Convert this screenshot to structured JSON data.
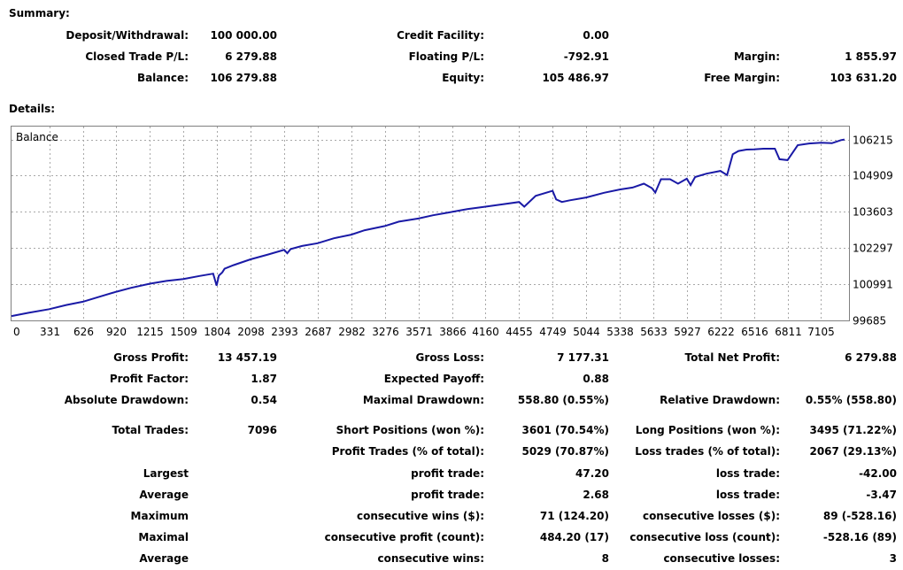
{
  "summary": {
    "title": "Summary:",
    "deposit_withdrawal": {
      "label": "Deposit/Withdrawal:",
      "value": "100 000.00"
    },
    "credit_facility": {
      "label": "Credit Facility:",
      "value": "0.00"
    },
    "closed_trade_pl": {
      "label": "Closed Trade P/L:",
      "value": "6 279.88"
    },
    "floating_pl": {
      "label": "Floating P/L:",
      "value": "-792.91"
    },
    "margin": {
      "label": "Margin:",
      "value": "1 855.97"
    },
    "balance": {
      "label": "Balance:",
      "value": "106 279.88"
    },
    "equity": {
      "label": "Equity:",
      "value": "105 486.97"
    },
    "free_margin": {
      "label": "Free Margin:",
      "value": "103 631.20"
    }
  },
  "details": {
    "title": "Details:",
    "chart_label": "Balance"
  },
  "chart_data": {
    "type": "line",
    "title": "Balance",
    "x_ticks": [
      "0",
      "331",
      "626",
      "920",
      "1215",
      "1509",
      "1804",
      "2098",
      "2393",
      "2687",
      "2982",
      "3276",
      "3571",
      "3866",
      "4160",
      "4455",
      "4749",
      "5044",
      "5338",
      "5633",
      "5927",
      "6222",
      "6516",
      "6811",
      "7105"
    ],
    "y_ticks": [
      "106215",
      "104909",
      "103603",
      "102297",
      "100991",
      "99685"
    ],
    "ylim": [
      99685,
      106680
    ],
    "xlim": [
      0,
      7350
    ],
    "grid": true,
    "line_color": "#1a1aa6",
    "series": [
      {
        "x": [
          0,
          150,
          331,
          480,
          626,
          780,
          920,
          1050,
          1215,
          1360,
          1509,
          1650,
          1770,
          1800,
          1820,
          1850,
          1870,
          1950,
          2098,
          2250,
          2393,
          2420,
          2450,
          2550,
          2687,
          2830,
          2982,
          3100,
          3276,
          3400,
          3571,
          3700,
          3866,
          4000,
          4160,
          4300,
          4455,
          4500,
          4600,
          4749,
          4780,
          4830,
          4900,
          5044,
          5200,
          5338,
          5450,
          5550,
          5620,
          5650,
          5700,
          5780,
          5850,
          5927,
          5960,
          6000,
          6100,
          6222,
          6280,
          6330,
          6380,
          6450,
          6516,
          6600,
          6700,
          6740,
          6811,
          6900,
          7000,
          7105,
          7200,
          7280,
          7310
        ],
        "values": [
          99840,
          99960,
          100090,
          100240,
          100360,
          100550,
          100720,
          100860,
          101010,
          101110,
          101180,
          101290,
          101370,
          100940,
          101300,
          101420,
          101550,
          101680,
          101890,
          102060,
          102230,
          102110,
          102260,
          102370,
          102470,
          102650,
          102780,
          102940,
          103090,
          103250,
          103360,
          103480,
          103600,
          103700,
          103790,
          103870,
          103960,
          103790,
          104180,
          104360,
          104050,
          103960,
          104020,
          104120,
          104290,
          104410,
          104480,
          104620,
          104460,
          104300,
          104780,
          104780,
          104620,
          104800,
          104570,
          104860,
          104980,
          105080,
          104930,
          105680,
          105800,
          105850,
          105860,
          105880,
          105880,
          105500,
          105470,
          106010,
          106070,
          106100,
          106080,
          106190,
          106215
        ]
      }
    ]
  },
  "stats": {
    "gross_profit": {
      "label": "Gross Profit:",
      "value": "13 457.19"
    },
    "gross_loss": {
      "label": "Gross Loss:",
      "value": "7 177.31"
    },
    "total_net_profit": {
      "label": "Total Net Profit:",
      "value": "6 279.88"
    },
    "profit_factor": {
      "label": "Profit Factor:",
      "value": "1.87"
    },
    "expected_payoff": {
      "label": "Expected Payoff:",
      "value": "0.88"
    },
    "absolute_drawdown": {
      "label": "Absolute Drawdown:",
      "value": "0.54"
    },
    "maximal_drawdown": {
      "label": "Maximal Drawdown:",
      "value": "558.80 (0.55%)"
    },
    "relative_drawdown": {
      "label": "Relative Drawdown:",
      "value": "0.55% (558.80)"
    },
    "total_trades": {
      "label": "Total Trades:",
      "value": "7096"
    },
    "short_positions": {
      "label": "Short Positions (won %):",
      "value": "3601 (70.54%)"
    },
    "long_positions": {
      "label": "Long Positions (won %):",
      "value": "3495 (71.22%)"
    },
    "profit_trades": {
      "label": "Profit Trades (% of total):",
      "value": "5029 (70.87%)"
    },
    "loss_trades": {
      "label": "Loss trades (% of total):",
      "value": "2067 (29.13%)"
    },
    "largest": {
      "label": "Largest",
      "profit_label": "profit trade:",
      "profit_value": "47.20",
      "loss_label": "loss trade:",
      "loss_value": "-42.00"
    },
    "average": {
      "label": "Average",
      "profit_label": "profit trade:",
      "profit_value": "2.68",
      "loss_label": "loss trade:",
      "loss_value": "-3.47"
    },
    "maximum": {
      "label": "Maximum",
      "wins_label": "consecutive wins ($):",
      "wins_value": "71 (124.20)",
      "losses_label": "consecutive losses ($):",
      "losses_value": "89 (-528.16)"
    },
    "maximal": {
      "label": "Maximal",
      "profit_label": "consecutive profit (count):",
      "profit_value": "484.20 (17)",
      "loss_label": "consecutive loss (count):",
      "loss_value": "-528.16 (89)"
    },
    "average_consecutive": {
      "label": "Average",
      "wins_label": "consecutive wins:",
      "wins_value": "8",
      "losses_label": "consecutive losses:",
      "losses_value": "3"
    }
  }
}
